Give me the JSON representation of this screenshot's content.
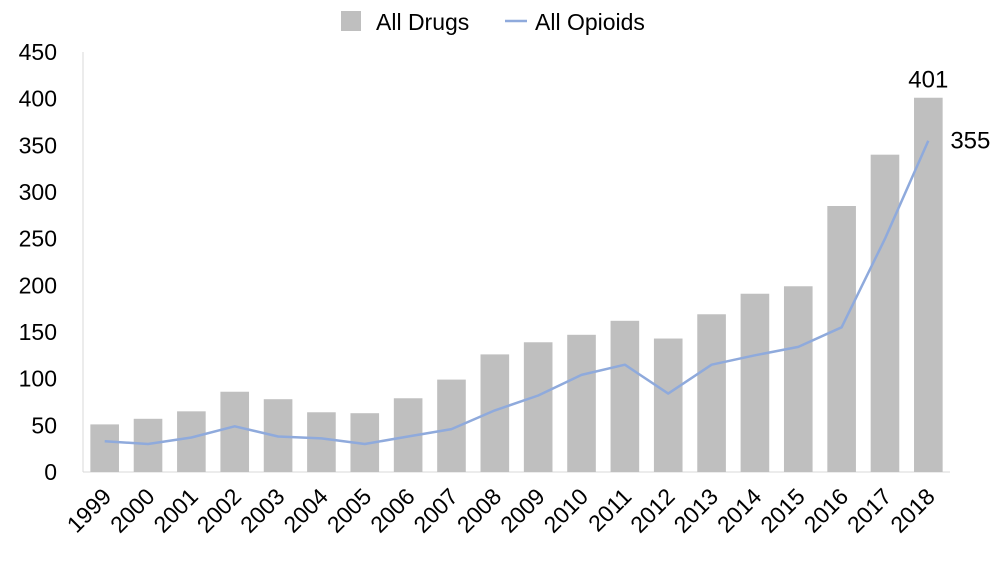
{
  "chart_data": {
    "type": "bar",
    "categories": [
      "1999",
      "2000",
      "2001",
      "2002",
      "2003",
      "2004",
      "2005",
      "2006",
      "2007",
      "2008",
      "2009",
      "2010",
      "2011",
      "2012",
      "2013",
      "2014",
      "2015",
      "2016",
      "2017",
      "2018"
    ],
    "series": [
      {
        "name": "All Drugs",
        "type": "bar",
        "color": "#bfbfbf",
        "values": [
          51,
          57,
          65,
          86,
          78,
          64,
          63,
          79,
          99,
          126,
          139,
          147,
          162,
          143,
          169,
          191,
          199,
          285,
          340,
          401
        ]
      },
      {
        "name": "All Opioids",
        "type": "line",
        "color": "#8faadc",
        "values": [
          33,
          30,
          37,
          49,
          38,
          36,
          30,
          38,
          46,
          66,
          82,
          104,
          115,
          84,
          115,
          125,
          134,
          155,
          250,
          355
        ]
      }
    ],
    "data_labels": [
      {
        "series": "All Drugs",
        "category": "2018",
        "text": "401"
      },
      {
        "series": "All Opioids",
        "category": "2018",
        "text": "355"
      }
    ],
    "y_ticks": [
      "0",
      "50",
      "100",
      "150",
      "200",
      "250",
      "300",
      "350",
      "400",
      "450"
    ],
    "ylim": [
      0,
      450
    ],
    "legend_position": "top-center",
    "grid": false,
    "title": "",
    "xlabel": "",
    "ylabel": ""
  }
}
